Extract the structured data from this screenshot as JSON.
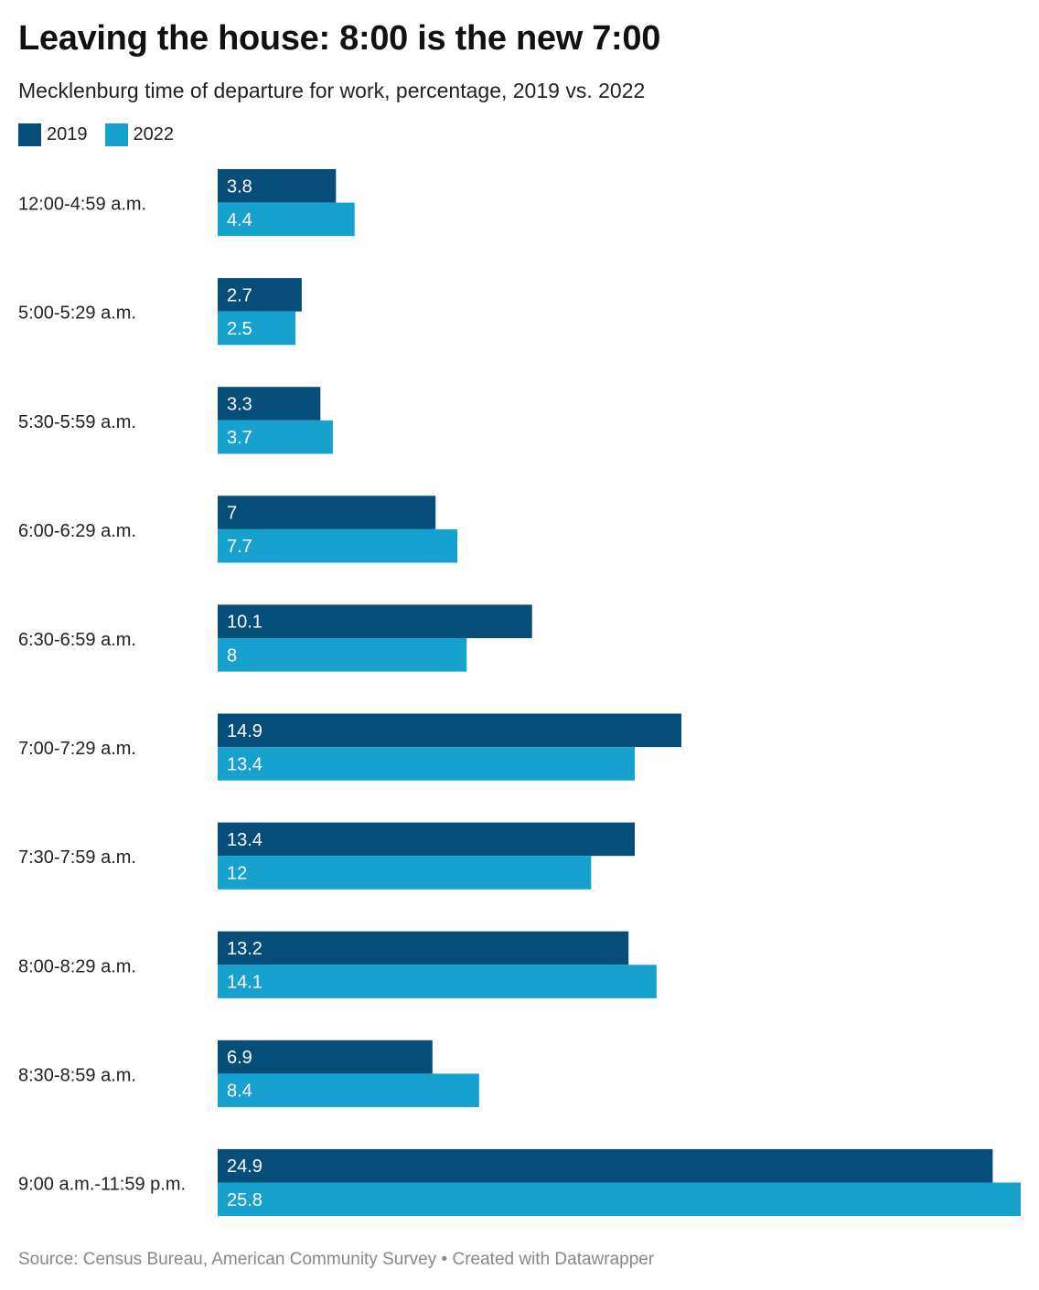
{
  "header": {
    "title": "Leaving the house: 8:00 is the new 7:00",
    "subtitle": "Mecklenburg time of departure for work, percentage, 2019 vs. 2022"
  },
  "legend": {
    "items": [
      {
        "label": "2019",
        "color": "#064e7a"
      },
      {
        "label": "2022",
        "color": "#17a1cf"
      }
    ]
  },
  "footer": {
    "source": "Source: Census Bureau, American Community Survey",
    "separator": "•",
    "credit": "Created with Datawrapper"
  },
  "chart_data": {
    "type": "bar",
    "orientation": "horizontal",
    "title": "Leaving the house: 8:00 is the new 7:00",
    "subtitle": "Mecklenburg time of departure for work, percentage, 2019 vs. 2022",
    "categories": [
      "12:00-4:59 a.m.",
      "5:00-5:29 a.m.",
      "5:30-5:59 a.m.",
      "6:00-6:29 a.m.",
      "6:30-6:59 a.m.",
      "7:00-7:29 a.m.",
      "7:30-7:59 a.m.",
      "8:00-8:29 a.m.",
      "8:30-8:59 a.m.",
      "9:00 a.m.-11:59 p.m."
    ],
    "series": [
      {
        "name": "2019",
        "color": "#064e7a",
        "values": [
          3.8,
          2.7,
          3.3,
          7,
          10.1,
          14.9,
          13.4,
          13.2,
          6.9,
          24.9
        ]
      },
      {
        "name": "2022",
        "color": "#17a1cf",
        "values": [
          4.4,
          2.5,
          3.7,
          7.7,
          8,
          13.4,
          12,
          14.1,
          8.4,
          25.8
        ]
      }
    ],
    "xlim": [
      0,
      25.8
    ],
    "grid": false,
    "legend_position": "top-left",
    "data_labels": "inside-bar-left"
  }
}
